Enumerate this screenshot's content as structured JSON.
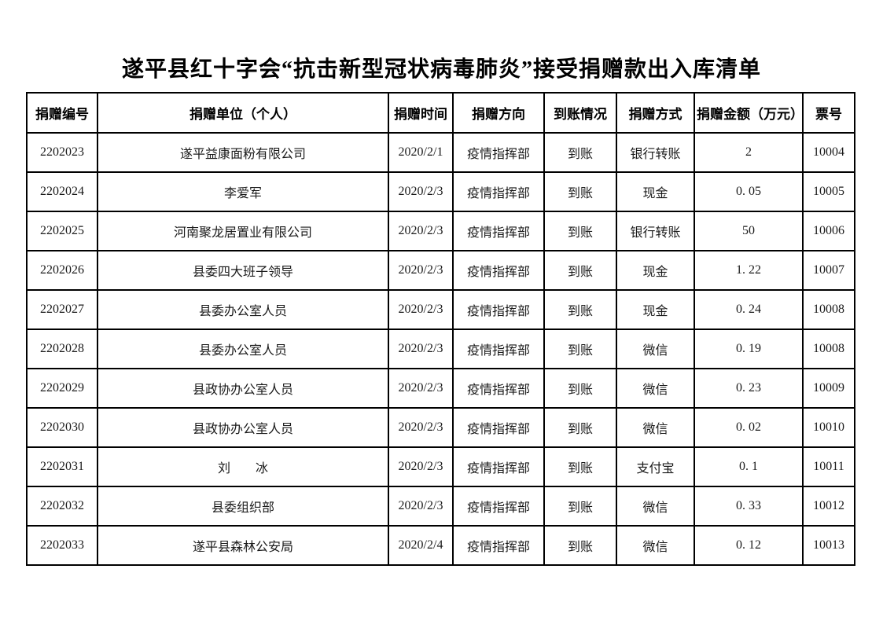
{
  "title": "遂平县红十字会“抗击新型冠状病毒肺炎”接受捐赠款出入库清单",
  "table": {
    "columns": [
      {
        "key": "donation-id",
        "label": "捐赠编号"
      },
      {
        "key": "donor",
        "label": "捐赠单位（个人）"
      },
      {
        "key": "donation-date",
        "label": "捐赠时间"
      },
      {
        "key": "direction",
        "label": "捐赠方向"
      },
      {
        "key": "arrival-status",
        "label": "到账情况"
      },
      {
        "key": "method",
        "label": "捐赠方式"
      },
      {
        "key": "amount",
        "label": "捐赠金额（万元）"
      },
      {
        "key": "ticket-no",
        "label": "票号"
      }
    ],
    "rows": [
      [
        "2202023",
        "遂平益康面粉有限公司",
        "2020/2/1",
        "疫情指挥部",
        "到账",
        "银行转账",
        "2",
        "10004"
      ],
      [
        "2202024",
        "李爱军",
        "2020/2/3",
        "疫情指挥部",
        "到账",
        "现金",
        "0. 05",
        "10005"
      ],
      [
        "2202025",
        "河南聚龙居置业有限公司",
        "2020/2/3",
        "疫情指挥部",
        "到账",
        "银行转账",
        "50",
        "10006"
      ],
      [
        "2202026",
        "县委四大班子领导",
        "2020/2/3",
        "疫情指挥部",
        "到账",
        "现金",
        "1. 22",
        "10007"
      ],
      [
        "2202027",
        "县委办公室人员",
        "2020/2/3",
        "疫情指挥部",
        "到账",
        "现金",
        "0. 24",
        "10008"
      ],
      [
        "2202028",
        "县委办公室人员",
        "2020/2/3",
        "疫情指挥部",
        "到账",
        "微信",
        "0. 19",
        "10008"
      ],
      [
        "2202029",
        "县政协办公室人员",
        "2020/2/3",
        "疫情指挥部",
        "到账",
        "微信",
        "0. 23",
        "10009"
      ],
      [
        "2202030",
        "县政协办公室人员",
        "2020/2/3",
        "疫情指挥部",
        "到账",
        "微信",
        "0. 02",
        "10010"
      ],
      [
        "2202031",
        "刘　　冰",
        "2020/2/3",
        "疫情指挥部",
        "到账",
        "支付宝",
        "0. 1",
        "10011"
      ],
      [
        "2202032",
        "县委组织部",
        "2020/2/3",
        "疫情指挥部",
        "到账",
        "微信",
        "0. 33",
        "10012"
      ],
      [
        "2202033",
        "遂平县森林公安局",
        "2020/2/4",
        "疫情指挥部",
        "到账",
        "微信",
        "0. 12",
        "10013"
      ]
    ]
  },
  "colors": {
    "text": "#000000",
    "border": "#000000",
    "background": "#ffffff"
  }
}
